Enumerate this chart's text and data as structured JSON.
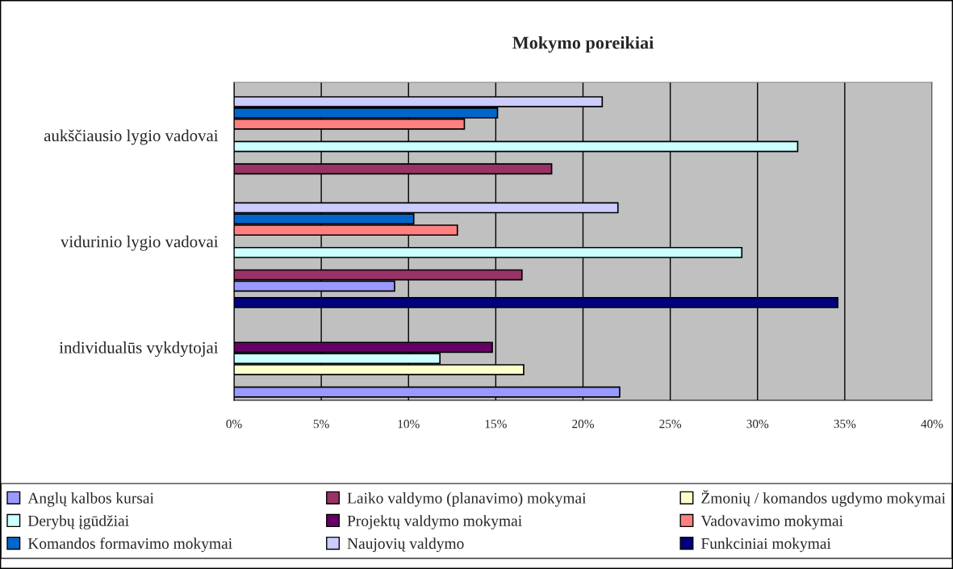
{
  "chart_data": {
    "type": "bar",
    "orientation": "horizontal",
    "title": "Mokymo poreikiai",
    "categories": [
      "aukščiausio lygio vadovai",
      "vidurinio lygio vadovai",
      "individualūs vykdytojai"
    ],
    "series": [
      {
        "name": "Anglų kalbos kursai",
        "color": "#9999ff",
        "values": [
          null,
          9.2,
          22.1
        ]
      },
      {
        "name": "Laiko valdymo (planavimo) mokymai",
        "color": "#993366",
        "values": [
          18.2,
          16.5,
          null
        ]
      },
      {
        "name": "Žmonių / komandos ugdymo mokymai",
        "color": "#ffffcc",
        "values": [
          null,
          null,
          16.6
        ]
      },
      {
        "name": "Derybų įgūdžiai",
        "color": "#ccffff",
        "values": [
          32.3,
          29.1,
          11.8
        ]
      },
      {
        "name": "Projektų valdymo mokymai",
        "color": "#660066",
        "values": [
          null,
          null,
          14.8
        ]
      },
      {
        "name": "Vadovavimo mokymai",
        "color": "#ff8080",
        "values": [
          13.2,
          12.8,
          null
        ]
      },
      {
        "name": "Komandos formavimo mokymai",
        "color": "#0066cc",
        "values": [
          15.1,
          10.3,
          null
        ]
      },
      {
        "name": "Naujovių valdymo",
        "color": "#ccccff",
        "values": [
          21.1,
          22.0,
          null
        ]
      },
      {
        "name": "Funkciniai mokymai",
        "color": "#000080",
        "values": [
          null,
          null,
          34.6
        ]
      }
    ],
    "xlim": [
      0,
      40
    ],
    "xticks": [
      {
        "value": 0,
        "label": "0%"
      },
      {
        "value": 5,
        "label": "5%"
      },
      {
        "value": 10,
        "label": "10%"
      },
      {
        "value": 15,
        "label": "15%"
      },
      {
        "value": 20,
        "label": "20%"
      },
      {
        "value": 25,
        "label": "25%"
      },
      {
        "value": 30,
        "label": "30%"
      },
      {
        "value": 35,
        "label": "35%"
      },
      {
        "value": 40,
        "label": "40%"
      }
    ],
    "grid": "x",
    "legend": "bottom"
  }
}
